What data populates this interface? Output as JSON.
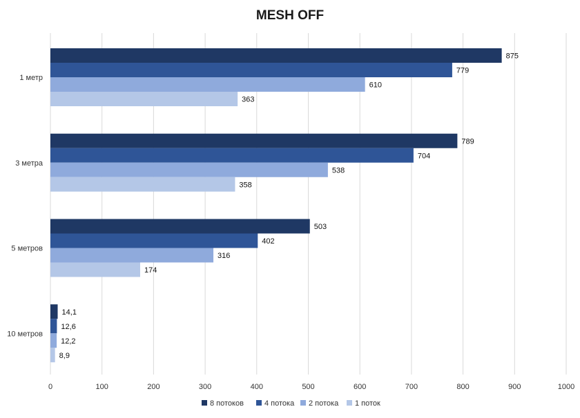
{
  "chart_data": {
    "type": "bar",
    "orientation": "horizontal",
    "title": "MESH OFF",
    "xlabel": "",
    "ylabel": "",
    "xlim": [
      0,
      1000
    ],
    "x_ticks": [
      0,
      100,
      200,
      300,
      400,
      500,
      600,
      700,
      800,
      900,
      1000
    ],
    "grid": true,
    "legend_position": "bottom",
    "categories": [
      "1 метр",
      "3 метра",
      "5 метров",
      "10 метров"
    ],
    "series": [
      {
        "name": "8 потоков",
        "color": "#1f3864",
        "values": [
          875,
          789,
          503,
          14.1
        ],
        "labels": [
          "875",
          "789",
          "503",
          "14,1"
        ]
      },
      {
        "name": "4 потока",
        "color": "#2f5597",
        "values": [
          779,
          704,
          402,
          12.6
        ],
        "labels": [
          "779",
          "704",
          "402",
          "12,6"
        ]
      },
      {
        "name": "2 потока",
        "color": "#8faadc",
        "values": [
          610,
          538,
          316,
          12.2
        ],
        "labels": [
          "610",
          "538",
          "316",
          "12,2"
        ]
      },
      {
        "name": "1 поток",
        "color": "#b4c7e7",
        "values": [
          363,
          358,
          174,
          8.9
        ],
        "labels": [
          "363",
          "358",
          "174",
          "8,9"
        ]
      }
    ]
  }
}
